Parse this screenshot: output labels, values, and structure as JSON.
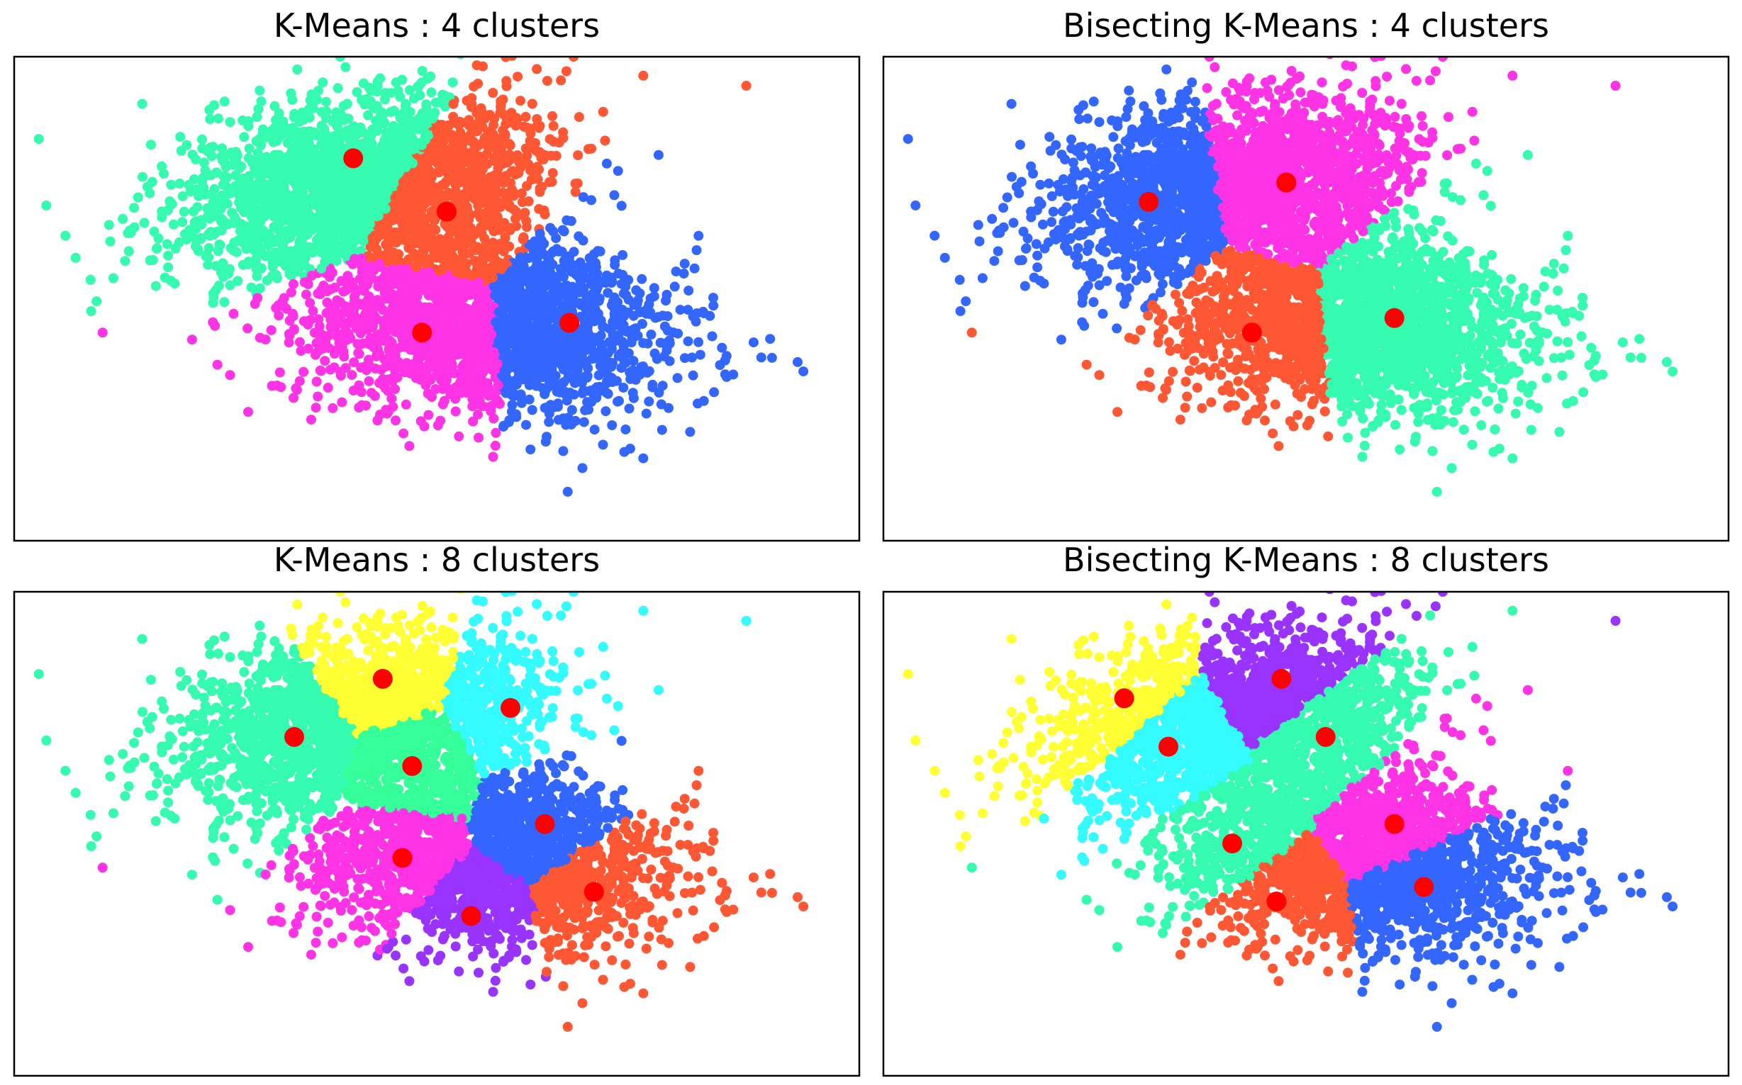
{
  "figure": {
    "panels": [
      {
        "title": "K-Means : 4 clusters"
      },
      {
        "title": "Bisecting K-Means : 4 clusters"
      },
      {
        "title": "K-Means : 8 clusters"
      },
      {
        "title": "Bisecting K-Means : 8 clusters"
      }
    ]
  },
  "colors": {
    "centroid": "#ff0000",
    "axes_frame": "#000000",
    "background": "#ffffff",
    "palette_4": [
      "#34fbb0",
      "#ff5733",
      "#ff33e6",
      "#3366ff"
    ],
    "palette_8": [
      "#ffff33",
      "#33fbff",
      "#34fbb0",
      "#34ff99",
      "#3366ff",
      "#ff33e6",
      "#9933ff",
      "#ff5733"
    ]
  },
  "chart_data": [
    {
      "type": "scatter",
      "title": "K-Means : 4 clusters",
      "xlabel": "",
      "ylabel": "",
      "axes_ticks": "none",
      "xlim": [
        -4.3,
        4.3
      ],
      "ylim": [
        -2.5,
        2.5
      ],
      "clusters": [
        {
          "color": "#34fbb0",
          "centroid": [
            -0.85,
            1.45
          ]
        },
        {
          "color": "#ff5733",
          "centroid": [
            0.1,
            0.9
          ]
        },
        {
          "color": "#ff33e6",
          "centroid": [
            -0.15,
            -0.35
          ]
        },
        {
          "color": "#3366ff",
          "centroid": [
            1.35,
            -0.25
          ]
        }
      ],
      "outliers": [
        {
          "x": -4.05,
          "y": 1.65,
          "color": "#34fbb0"
        },
        {
          "x": -3.4,
          "y": -0.35,
          "color": "#ff33e6"
        },
        {
          "x": 3.15,
          "y": 2.2,
          "color": "#ff5733"
        }
      ]
    },
    {
      "type": "scatter",
      "title": "Bisecting K-Means : 4 clusters",
      "xlabel": "",
      "ylabel": "",
      "axes_ticks": "none",
      "xlim": [
        -4.3,
        4.3
      ],
      "ylim": [
        -2.5,
        2.5
      ],
      "clusters": [
        {
          "color": "#3366ff",
          "centroid": [
            -1.6,
            1.0
          ]
        },
        {
          "color": "#ff33e6",
          "centroid": [
            -0.2,
            1.2
          ]
        },
        {
          "color": "#ff5733",
          "centroid": [
            -0.55,
            -0.35
          ]
        },
        {
          "color": "#34fbb0",
          "centroid": [
            0.9,
            -0.2
          ]
        }
      ],
      "outliers": [
        {
          "x": -4.05,
          "y": 1.65,
          "color": "#3366ff"
        },
        {
          "x": -3.4,
          "y": -0.35,
          "color": "#ff5733"
        },
        {
          "x": 3.15,
          "y": 2.2,
          "color": "#ff33e6"
        }
      ]
    },
    {
      "type": "scatter",
      "title": "K-Means : 8 clusters",
      "xlabel": "",
      "ylabel": "",
      "axes_ticks": "none",
      "xlim": [
        -4.3,
        4.3
      ],
      "ylim": [
        -2.5,
        2.5
      ],
      "clusters": [
        {
          "color": "#ffff33",
          "centroid": [
            -0.55,
            1.6
          ]
        },
        {
          "color": "#33fbff",
          "centroid": [
            0.75,
            1.3
          ]
        },
        {
          "color": "#34fbb0",
          "centroid": [
            -1.45,
            1.0
          ]
        },
        {
          "color": "#34ff99",
          "centroid": [
            -0.25,
            0.7
          ]
        },
        {
          "color": "#3366ff",
          "centroid": [
            1.1,
            0.1
          ]
        },
        {
          "color": "#ff33e6",
          "centroid": [
            -0.35,
            -0.25
          ]
        },
        {
          "color": "#9933ff",
          "centroid": [
            0.35,
            -0.85
          ]
        },
        {
          "color": "#ff5733",
          "centroid": [
            1.6,
            -0.6
          ]
        }
      ],
      "outliers": [
        {
          "x": -4.05,
          "y": 1.65,
          "color": "#34fbb0"
        },
        {
          "x": -3.4,
          "y": -0.35,
          "color": "#ff33e6"
        },
        {
          "x": 3.15,
          "y": 2.2,
          "color": "#33fbff"
        }
      ]
    },
    {
      "type": "scatter",
      "title": "Bisecting K-Means : 8 clusters",
      "xlabel": "",
      "ylabel": "",
      "axes_ticks": "none",
      "xlim": [
        -4.3,
        4.3
      ],
      "ylim": [
        -2.5,
        2.5
      ],
      "clusters": [
        {
          "color": "#ffff33",
          "centroid": [
            -1.85,
            1.4
          ]
        },
        {
          "color": "#9933ff",
          "centroid": [
            -0.25,
            1.6
          ]
        },
        {
          "color": "#33fbff",
          "centroid": [
            -1.4,
            0.9
          ]
        },
        {
          "color": "#34fbb0",
          "centroid": [
            0.2,
            1.0
          ]
        },
        {
          "color": "#ff33e6",
          "centroid": [
            0.9,
            0.1
          ]
        },
        {
          "color": "#34fbb0",
          "centroid": [
            -0.75,
            -0.1
          ]
        },
        {
          "color": "#3366ff",
          "centroid": [
            1.2,
            -0.55
          ]
        },
        {
          "color": "#ff5733",
          "centroid": [
            -0.3,
            -0.7
          ]
        }
      ],
      "outliers": [
        {
          "x": -4.05,
          "y": 1.65,
          "color": "#ffff33"
        },
        {
          "x": -3.4,
          "y": -0.35,
          "color": "#34fbb0"
        },
        {
          "x": 3.15,
          "y": 2.2,
          "color": "#9933ff"
        }
      ]
    }
  ]
}
